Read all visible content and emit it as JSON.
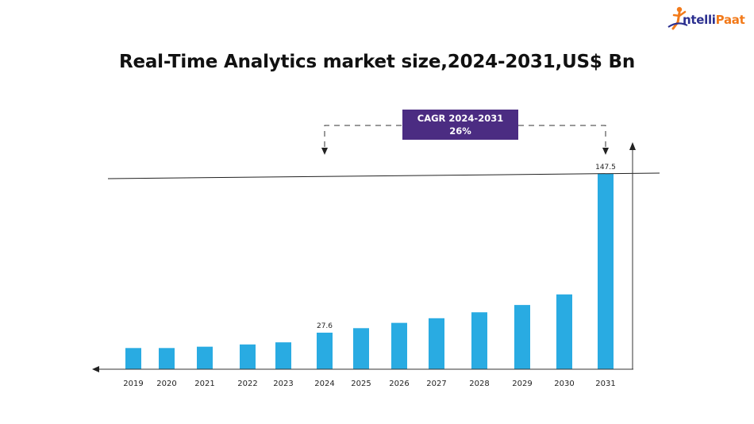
{
  "brand": {
    "logo_part1": "ntelli",
    "logo_part2": "Paat",
    "icon": "intellipaat-person-icon",
    "color_primary": "#2b2f8f",
    "color_accent": "#f27a1a"
  },
  "chart_data": {
    "type": "bar",
    "title": "Real-Time Analytics market size,2024-2031,US$ Bn",
    "xlabel": "",
    "ylabel": "",
    "categories": [
      "2019",
      "2020",
      "2021",
      "2022",
      "2023",
      "2024",
      "2025",
      "2026",
      "2027",
      "2028",
      "2029",
      "2030",
      "2031"
    ],
    "values": [
      16.0,
      16.0,
      17.0,
      18.7,
      20.3,
      27.6,
      31.0,
      35.0,
      38.5,
      43.0,
      48.5,
      56.5,
      147.5
    ],
    "data_labels": {
      "5": "27.6",
      "12": "147.5"
    },
    "ylim": [
      0,
      147.5
    ],
    "bar_color": "#29abe2",
    "annotation": {
      "line1": "CAGR 2024-2031",
      "line2": "26%",
      "from": "2024",
      "to": "2031",
      "color": "#4b2c82"
    },
    "grid": false
  }
}
